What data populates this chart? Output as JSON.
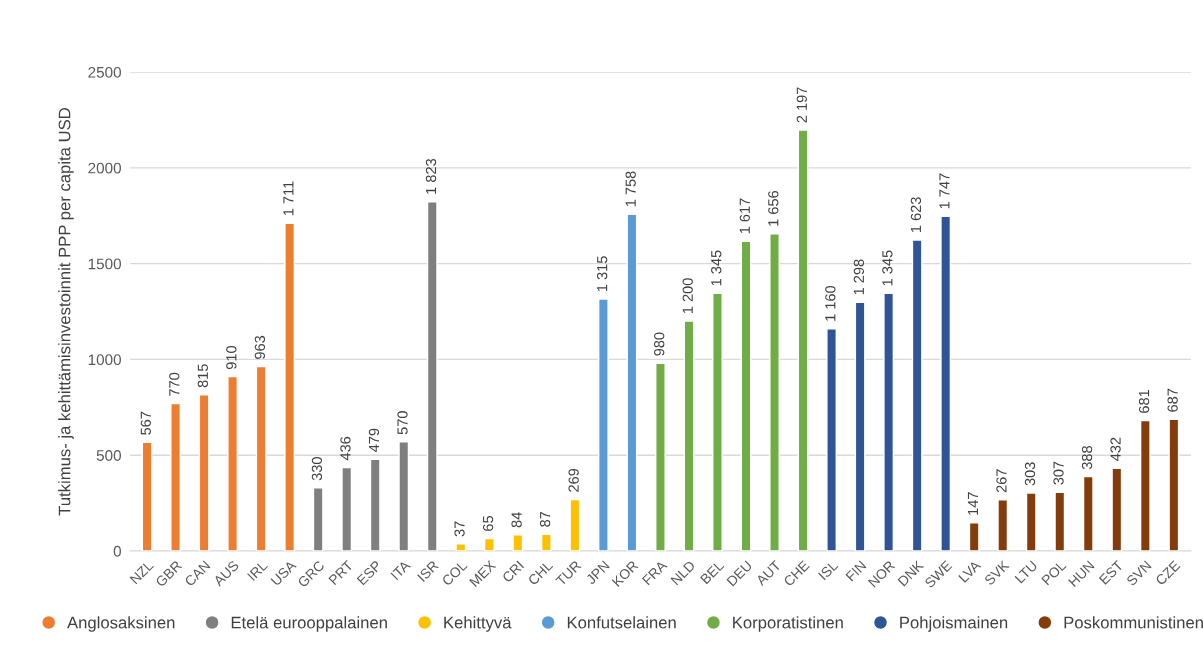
{
  "chart_data": {
    "type": "bar",
    "ylabel": "Tutkimus- ja kehittämisinvestoinnit PPP per capita USD",
    "categories": [
      "NZL",
      "GBR",
      "CAN",
      "AUS",
      "IRL",
      "USA",
      "GRC",
      "PRT",
      "ESP",
      "ITA",
      "ISR",
      "COL",
      "MEX",
      "CRI",
      "CHL",
      "TUR",
      "JPN",
      "KOR",
      "FRA",
      "NLD",
      "BEL",
      "DEU",
      "AUT",
      "CHE",
      "ISL",
      "FIN",
      "NOR",
      "DNK",
      "SWE",
      "LVA",
      "SVK",
      "LTU",
      "POL",
      "HUN",
      "EST",
      "SVN",
      "CZE"
    ],
    "series": [
      {
        "name": "Anglosaksinen",
        "color": "#ed7d31",
        "values": [
          567,
          770,
          815,
          910,
          963,
          1711,
          null,
          null,
          null,
          null,
          null,
          null,
          null,
          null,
          null,
          null,
          null,
          null,
          null,
          null,
          null,
          null,
          null,
          null,
          null,
          null,
          null,
          null,
          null,
          null,
          null,
          null,
          null,
          null,
          null,
          null,
          null
        ],
        "value_labels": [
          "567",
          "770",
          "815",
          "910",
          "963",
          "1 711",
          null,
          null,
          null,
          null,
          null,
          null,
          null,
          null,
          null,
          null,
          null,
          null,
          null,
          null,
          null,
          null,
          null,
          null,
          null,
          null,
          null,
          null,
          null,
          null,
          null,
          null,
          null,
          null,
          null,
          null,
          null
        ]
      },
      {
        "name": "Etelä eurooppalainen",
        "color": "#7f7f7f",
        "values": [
          null,
          null,
          null,
          null,
          null,
          null,
          330,
          436,
          479,
          570,
          1823,
          null,
          null,
          null,
          null,
          null,
          null,
          null,
          null,
          null,
          null,
          null,
          null,
          null,
          null,
          null,
          null,
          null,
          null,
          null,
          null,
          null,
          null,
          null,
          null,
          null,
          null
        ],
        "value_labels": [
          null,
          null,
          null,
          null,
          null,
          null,
          "330",
          "436",
          "479",
          "570",
          "1 823",
          null,
          null,
          null,
          null,
          null,
          null,
          null,
          null,
          null,
          null,
          null,
          null,
          null,
          null,
          null,
          null,
          null,
          null,
          null,
          null,
          null,
          null,
          null,
          null,
          null,
          null
        ]
      },
      {
        "name": "Kehittyvä",
        "color": "#ffc000",
        "values": [
          null,
          null,
          null,
          null,
          null,
          null,
          null,
          null,
          null,
          null,
          null,
          37,
          65,
          84,
          87,
          269,
          null,
          null,
          null,
          null,
          null,
          null,
          null,
          null,
          null,
          null,
          null,
          null,
          null,
          null,
          null,
          null,
          null,
          null,
          null,
          null,
          null
        ],
        "value_labels": [
          null,
          null,
          null,
          null,
          null,
          null,
          null,
          null,
          null,
          null,
          null,
          "37",
          "65",
          "84",
          "87",
          "269",
          null,
          null,
          null,
          null,
          null,
          null,
          null,
          null,
          null,
          null,
          null,
          null,
          null,
          null,
          null,
          null,
          null,
          null,
          null,
          null,
          null
        ]
      },
      {
        "name": "Konfutselainen",
        "color": "#5b9bd5",
        "values": [
          null,
          null,
          null,
          null,
          null,
          null,
          null,
          null,
          null,
          null,
          null,
          null,
          null,
          null,
          null,
          null,
          1315,
          1758,
          null,
          null,
          null,
          null,
          null,
          null,
          null,
          null,
          null,
          null,
          null,
          null,
          null,
          null,
          null,
          null,
          null,
          null,
          null
        ],
        "value_labels": [
          null,
          null,
          null,
          null,
          null,
          null,
          null,
          null,
          null,
          null,
          null,
          null,
          null,
          null,
          null,
          null,
          "1 315",
          "1 758",
          null,
          null,
          null,
          null,
          null,
          null,
          null,
          null,
          null,
          null,
          null,
          null,
          null,
          null,
          null,
          null,
          null,
          null,
          null
        ]
      },
      {
        "name": "Korporatistinen",
        "color": "#70ad47",
        "values": [
          null,
          null,
          null,
          null,
          null,
          null,
          null,
          null,
          null,
          null,
          null,
          null,
          null,
          null,
          null,
          null,
          null,
          null,
          980,
          1200,
          1345,
          1617,
          1656,
          2197,
          null,
          null,
          null,
          null,
          null,
          null,
          null,
          null,
          null,
          null,
          null,
          null,
          null
        ],
        "value_labels": [
          null,
          null,
          null,
          null,
          null,
          null,
          null,
          null,
          null,
          null,
          null,
          null,
          null,
          null,
          null,
          null,
          null,
          null,
          "980",
          "1 200",
          "1 345",
          "1 617",
          "1 656",
          "2 197",
          null,
          null,
          null,
          null,
          null,
          null,
          null,
          null,
          null,
          null,
          null,
          null,
          null
        ]
      },
      {
        "name": "Pohjoismainen",
        "color": "#2f5597",
        "values": [
          null,
          null,
          null,
          null,
          null,
          null,
          null,
          null,
          null,
          null,
          null,
          null,
          null,
          null,
          null,
          null,
          null,
          null,
          null,
          null,
          null,
          null,
          null,
          null,
          1160,
          1298,
          1345,
          1623,
          1747,
          null,
          null,
          null,
          null,
          null,
          null,
          null,
          null
        ],
        "value_labels": [
          null,
          null,
          null,
          null,
          null,
          null,
          null,
          null,
          null,
          null,
          null,
          null,
          null,
          null,
          null,
          null,
          null,
          null,
          null,
          null,
          null,
          null,
          null,
          null,
          "1 160",
          "1 298",
          "1 345",
          "1 623",
          "1 747",
          null,
          null,
          null,
          null,
          null,
          null,
          null,
          null
        ]
      },
      {
        "name": "Poskommunistinen",
        "color": "#843c0c",
        "values": [
          null,
          null,
          null,
          null,
          null,
          null,
          null,
          null,
          null,
          null,
          null,
          null,
          null,
          null,
          null,
          null,
          null,
          null,
          null,
          null,
          null,
          null,
          null,
          null,
          null,
          null,
          null,
          null,
          null,
          147,
          267,
          303,
          307,
          388,
          432,
          681,
          687
        ],
        "value_labels": [
          null,
          null,
          null,
          null,
          null,
          null,
          null,
          null,
          null,
          null,
          null,
          null,
          null,
          null,
          null,
          null,
          null,
          null,
          null,
          null,
          null,
          null,
          null,
          null,
          null,
          null,
          null,
          null,
          null,
          "147",
          "267",
          "303",
          "307",
          "388",
          "432",
          "681",
          "687"
        ]
      }
    ],
    "ylim": [
      0,
      2500
    ],
    "yticks": [
      0,
      500,
      1000,
      1500,
      2000,
      2500
    ],
    "grid": "y",
    "legend": "bottom"
  }
}
